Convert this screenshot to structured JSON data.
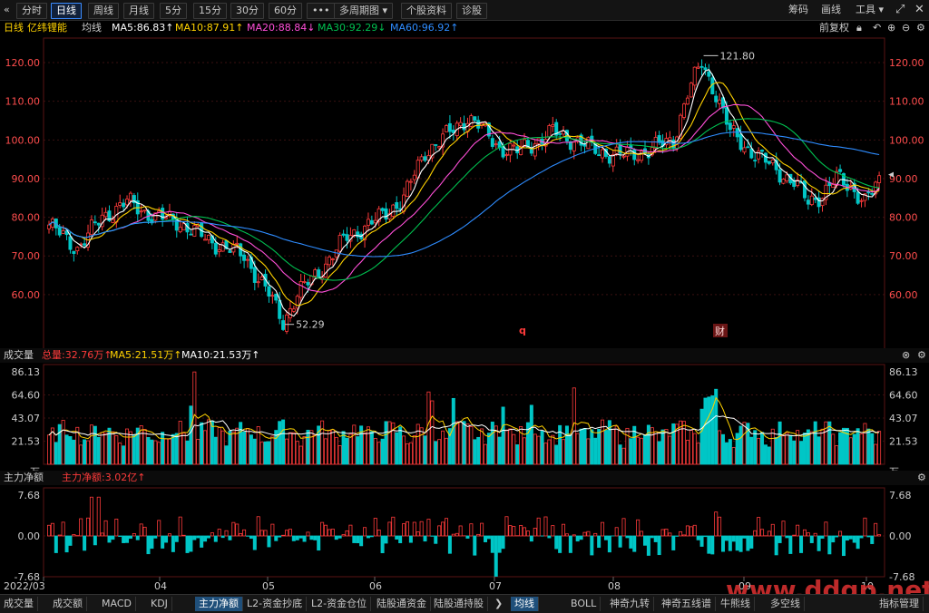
{
  "toolbar": {
    "collapse_icon": "«",
    "tabs": [
      "分时",
      "日线",
      "周线",
      "月线",
      "5分",
      "15分",
      "30分",
      "60分",
      "•••",
      "多周期图 ▾",
      "个股资料",
      "诊股"
    ],
    "active_tab": "日线",
    "right": [
      "筹码",
      "画线",
      "工具 ▾"
    ],
    "expand_icon": "⤢"
  },
  "ma_bar": {
    "period": "日线",
    "stock": "亿纬锂能",
    "label": "均线",
    "ma5": "MA5:86.83↑",
    "ma10": "MA10:87.91↑",
    "ma20": "MA20:88.84↓",
    "ma30": "MA30:92.29↓",
    "ma60": "MA60:96.92↑",
    "adjust": "前复权"
  },
  "colors": {
    "up": "#ff3b3b",
    "down": "#00c6c6",
    "ma5": "#ffffff",
    "ma10": "#ffd200",
    "ma20": "#ff4fd8",
    "ma30": "#00c050",
    "ma60": "#2e8cff"
  },
  "price_axis": [
    "120.00",
    "110.00",
    "100.00",
    "90.00",
    "80.00",
    "70.00",
    "60.00"
  ],
  "price_annotations": {
    "high": "121.80",
    "low": "52.29",
    "marker1": "q",
    "marker2": "财"
  },
  "volume_panel": {
    "title": "成交量",
    "total": "总量:32.76万↑",
    "ma5": "MA5:21.51万↑",
    "ma10": "MA10:21.53万↑",
    "axis": [
      "86.13",
      "64.60",
      "43.07",
      "21.53",
      "万"
    ]
  },
  "flow_panel": {
    "title": "主力净额",
    "value": "主力净额:3.02亿↑",
    "axis": [
      "7.68",
      "0.00",
      "-7.68"
    ]
  },
  "x_axis": [
    "2022/03",
    "04",
    "05",
    "06",
    "07",
    "08",
    "09",
    "10"
  ],
  "bottom_tabs_left": [
    "成交量",
    "成交额",
    "MACD",
    "KDJ",
    "主力净额",
    "L2-资金抄底",
    "L2-资金仓位",
    "陆股通资金",
    "陆股通持股"
  ],
  "bottom_tabs_left_active": "主力净额",
  "bottom_tabs_right": [
    "均线",
    "BOLL",
    "神奇九转",
    "神奇五线谱",
    "牛熊线",
    "多空线",
    "指标管理"
  ],
  "bottom_tabs_right_active": "均线",
  "watermark": "www.ddgp.net",
  "chart_data": {
    "type": "candlestick",
    "price_range": [
      52.29,
      121.8
    ],
    "y_ticks": [
      60,
      70,
      80,
      90,
      100,
      110,
      120
    ],
    "volume_range": [
      0,
      86.13
    ],
    "flow_range": [
      -7.68,
      7.68
    ],
    "waypoints": [
      [
        0,
        78
      ],
      [
        8,
        72
      ],
      [
        15,
        80
      ],
      [
        22,
        84
      ],
      [
        30,
        80
      ],
      [
        36,
        79
      ],
      [
        45,
        74
      ],
      [
        55,
        70
      ],
      [
        62,
        60
      ],
      [
        66,
        53
      ],
      [
        70,
        60
      ],
      [
        78,
        68
      ],
      [
        84,
        75
      ],
      [
        92,
        79
      ],
      [
        100,
        85
      ],
      [
        106,
        97
      ],
      [
        112,
        101
      ],
      [
        118,
        106
      ],
      [
        122,
        103
      ],
      [
        127,
        98
      ],
      [
        132,
        97
      ],
      [
        138,
        100
      ],
      [
        142,
        102
      ],
      [
        148,
        100
      ],
      [
        155,
        97
      ],
      [
        162,
        96
      ],
      [
        168,
        97
      ],
      [
        176,
        100
      ],
      [
        180,
        112
      ],
      [
        184,
        120
      ],
      [
        188,
        112
      ],
      [
        192,
        102
      ],
      [
        198,
        97
      ],
      [
        204,
        93
      ],
      [
        210,
        89
      ],
      [
        214,
        84
      ],
      [
        218,
        86
      ],
      [
        222,
        90
      ],
      [
        226,
        88
      ],
      [
        230,
        84
      ],
      [
        234,
        89
      ]
    ],
    "series_ma": [
      "MA5",
      "MA10",
      "MA20",
      "MA30",
      "MA60"
    ]
  }
}
